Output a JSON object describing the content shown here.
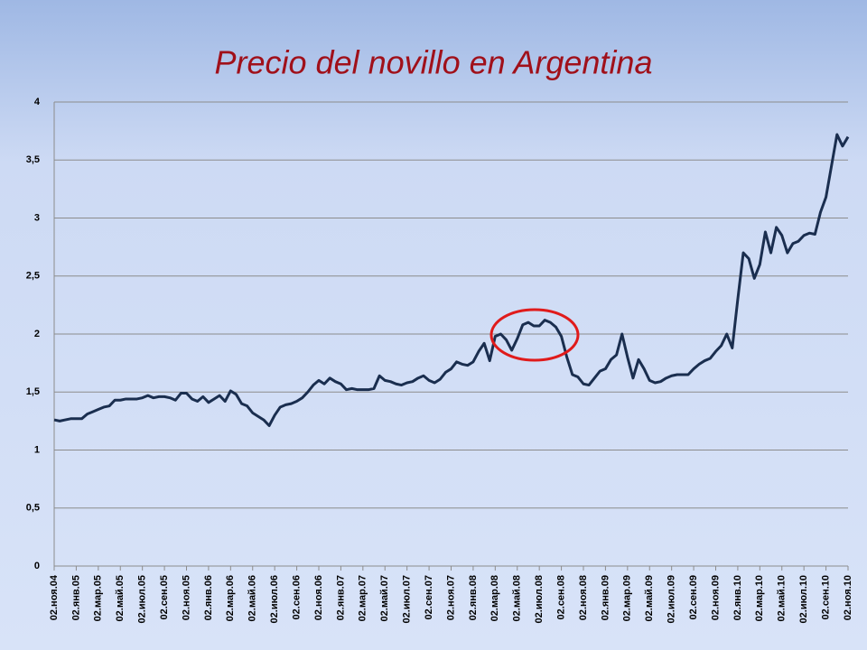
{
  "chart_data": {
    "type": "line",
    "title": "Precio del novillo en Argentina",
    "series": [
      {
        "name": null,
        "color": "#1a2e4f",
        "values": [
          1.26,
          1.25,
          1.26,
          1.27,
          1.27,
          1.27,
          1.31,
          1.33,
          1.35,
          1.37,
          1.38,
          1.43,
          1.43,
          1.44,
          1.44,
          1.44,
          1.45,
          1.47,
          1.45,
          1.46,
          1.46,
          1.45,
          1.43,
          1.49,
          1.49,
          1.44,
          1.42,
          1.46,
          1.41,
          1.44,
          1.47,
          1.42,
          1.51,
          1.48,
          1.4,
          1.38,
          1.32,
          1.29,
          1.26,
          1.21,
          1.3,
          1.37,
          1.39,
          1.4,
          1.42,
          1.45,
          1.5,
          1.56,
          1.6,
          1.57,
          1.62,
          1.59,
          1.57,
          1.52,
          1.53,
          1.52,
          1.52,
          1.52,
          1.53,
          1.64,
          1.6,
          1.59,
          1.57,
          1.56,
          1.58,
          1.59,
          1.62,
          1.64,
          1.6,
          1.58,
          1.61,
          1.67,
          1.7,
          1.76,
          1.74,
          1.73,
          1.76,
          1.85,
          1.92,
          1.77,
          1.98,
          2.0,
          1.95,
          1.86,
          1.96,
          2.08,
          2.1,
          2.07,
          2.07,
          2.12,
          2.1,
          2.06,
          1.98,
          1.8,
          1.65,
          1.63,
          1.57,
          1.56,
          1.62,
          1.68,
          1.7,
          1.78,
          1.82,
          2.0,
          1.8,
          1.62,
          1.78,
          1.7,
          1.6,
          1.58,
          1.59,
          1.62,
          1.64,
          1.65,
          1.65,
          1.65,
          1.7,
          1.74,
          1.77,
          1.79,
          1.85,
          1.9,
          2.0,
          1.88,
          2.3,
          2.7,
          2.65,
          2.48,
          2.6,
          2.88,
          2.7,
          2.92,
          2.85,
          2.7,
          2.78,
          2.8,
          2.85,
          2.87,
          2.86,
          3.05,
          3.18,
          3.45,
          3.72,
          3.62,
          3.7
        ]
      }
    ],
    "xlim": [
      0,
      144
    ],
    "xticks": [
      {
        "value": 0,
        "label": "02.ноя.04"
      },
      {
        "value": 4,
        "label": "02.янв.05"
      },
      {
        "value": 8,
        "label": "02.мар.05"
      },
      {
        "value": 12,
        "label": "02.май.05"
      },
      {
        "value": 16,
        "label": "02.июл.05"
      },
      {
        "value": 20,
        "label": "02.сен.05"
      },
      {
        "value": 24,
        "label": "02.ноя.05"
      },
      {
        "value": 28,
        "label": "02.янв.06"
      },
      {
        "value": 32,
        "label": "02.мар.06"
      },
      {
        "value": 36,
        "label": "02.май.06"
      },
      {
        "value": 40,
        "label": "02.июл.06"
      },
      {
        "value": 44,
        "label": "02.сен.06"
      },
      {
        "value": 48,
        "label": "02.ноя.06"
      },
      {
        "value": 52,
        "label": "02.янв.07"
      },
      {
        "value": 56,
        "label": "02.мар.07"
      },
      {
        "value": 60,
        "label": "02.май.07"
      },
      {
        "value": 64,
        "label": "02.июл.07"
      },
      {
        "value": 68,
        "label": "02.сен.07"
      },
      {
        "value": 72,
        "label": "02.ноя.07"
      },
      {
        "value": 76,
        "label": "02.янв.08"
      },
      {
        "value": 80,
        "label": "02.мар.08"
      },
      {
        "value": 84,
        "label": "02.май.08"
      },
      {
        "value": 88,
        "label": "02.июл.08"
      },
      {
        "value": 92,
        "label": "02.сен.08"
      },
      {
        "value": 96,
        "label": "02.ноя.08"
      },
      {
        "value": 100,
        "label": "02.янв.09"
      },
      {
        "value": 104,
        "label": "02.мар.09"
      },
      {
        "value": 108,
        "label": "02.май.09"
      },
      {
        "value": 112,
        "label": "02.июл.09"
      },
      {
        "value": 116,
        "label": "02.сен.09"
      },
      {
        "value": 120,
        "label": "02.ноя.09"
      },
      {
        "value": 124,
        "label": "02.янв.10"
      },
      {
        "value": 128,
        "label": "02.мар.10"
      },
      {
        "value": 132,
        "label": "02.май.10"
      },
      {
        "value": 136,
        "label": "02.июл.10"
      },
      {
        "value": 140,
        "label": "02.сен.10"
      },
      {
        "value": 144,
        "label": "02.ноя.10"
      }
    ],
    "ylim": [
      0,
      4
    ],
    "yticks": [
      0,
      {
        "value": 0.5,
        "label": "0,5"
      },
      1,
      {
        "value": 1.5,
        "label": "1,5"
      },
      2,
      {
        "value": 2.5,
        "label": "2,5"
      },
      3,
      {
        "value": 3.5,
        "label": "3,5"
      },
      4
    ],
    "grid": true
  }
}
